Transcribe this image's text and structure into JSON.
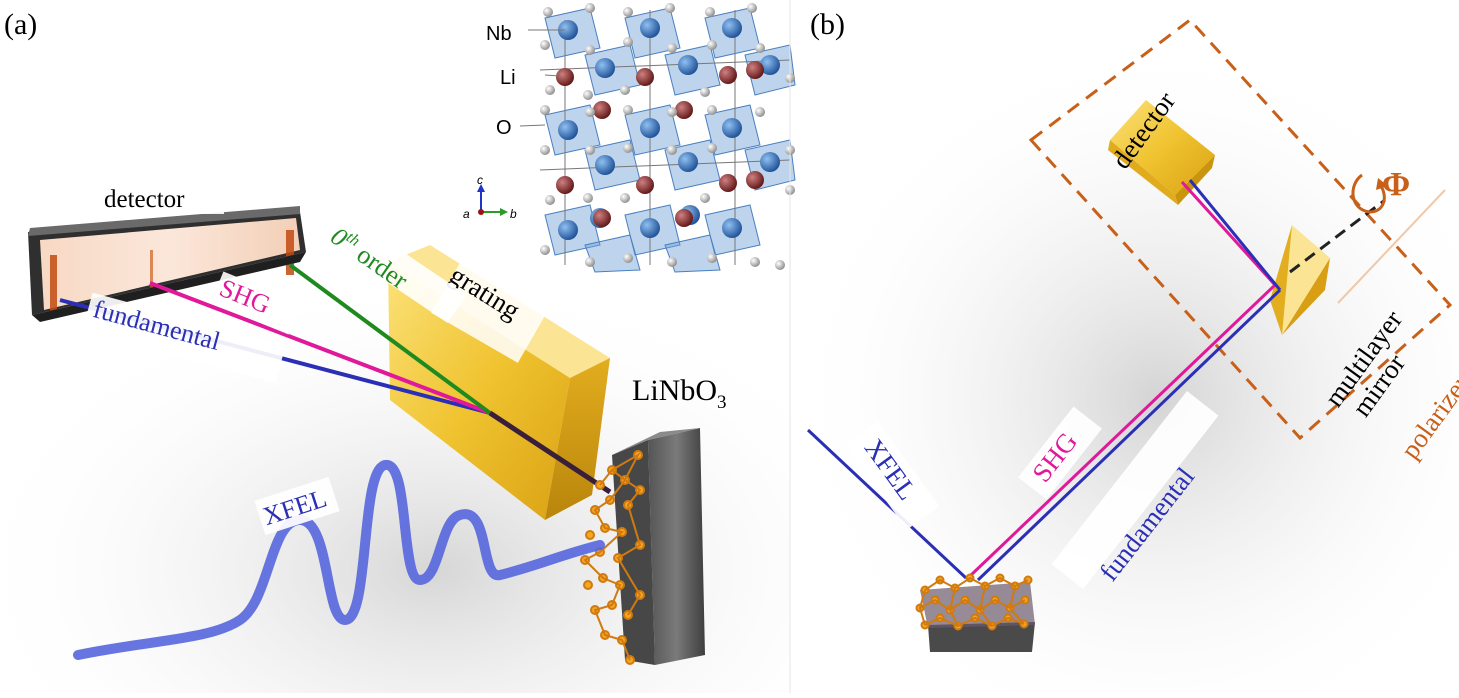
{
  "panel_a": {
    "label": "(a)",
    "detector_label": "detector",
    "grating_label": "grating",
    "shg_label": "SHG",
    "zero_order_base": "0",
    "zero_order_sup": "th",
    "zero_order_word": " order",
    "fundamental_label": "fundamental",
    "xfel_label": "XFEL",
    "sample_label": "LiNbO",
    "sample_sub": "3",
    "crystal": {
      "nb_label": "Nb",
      "li_label": "Li",
      "o_label": "O",
      "axis_c": "c",
      "axis_a": "a",
      "axis_b": "b"
    }
  },
  "panel_b": {
    "label": "(b)",
    "detector_label": "detector",
    "phi_label": "Φ",
    "multilayer_label": "multilayer",
    "mirror_label": "mirror",
    "polarizer_label": "polarizer",
    "xfel_label": "XFEL",
    "shg_label": "SHG",
    "fundamental_label": "fundamental"
  },
  "colors": {
    "fundamental": "#2b2fb5",
    "shg": "#e0189a",
    "zero_order": "#1f8a1f",
    "gold": "#f0c330",
    "orange_dash": "#c8601a",
    "xfel_wave": "#5566dd",
    "nb": "#2a6fc0",
    "li": "#8b2a2a",
    "o": "#cfcfcf"
  }
}
